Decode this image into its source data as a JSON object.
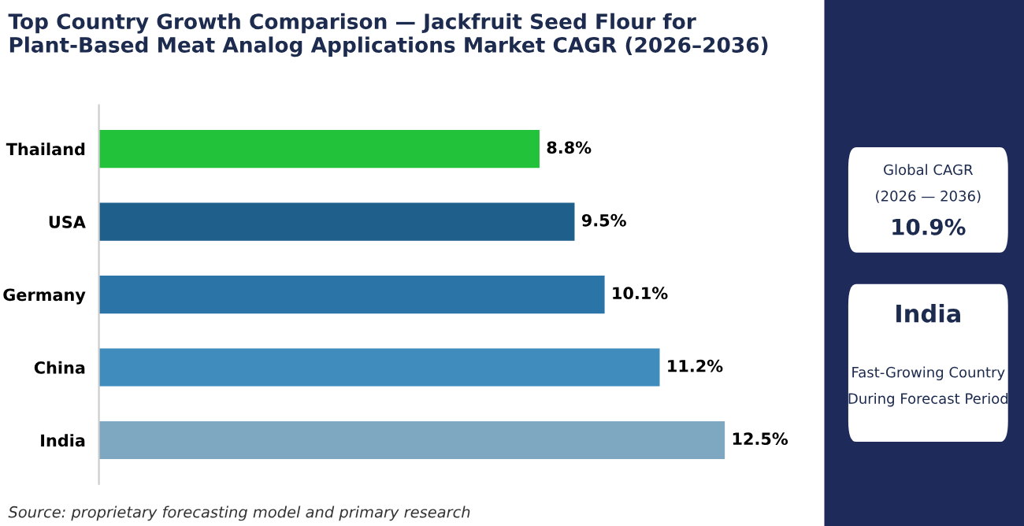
{
  "chart_data": [
    {
      "type": "bar",
      "orientation": "horizontal",
      "title": "Top Country Growth Comparison — Jackfruit Seed Flour for Plant-Based Meat Analog Applications Market CAGR (2026–2036)",
      "categories": [
        "Thailand",
        "USA",
        "Germany",
        "China",
        "India"
      ],
      "values": [
        8.8,
        9.5,
        10.1,
        11.2,
        12.5
      ],
      "colors": [
        "#22c33a",
        "#1f5f8b",
        "#2a74a8",
        "#3f8cbd",
        "#7ea7c2"
      ],
      "value_labels": [
        "8.8%",
        "9.5%",
        "10.1%",
        "11.2%",
        "12.5%"
      ],
      "grid": false,
      "legend": false,
      "annotations": [
        "Source: proprietary forecasting model and primary research"
      ]
    },
    {
      "type": "other",
      "annotations": [
        "Global CAGR",
        "(2026 — 2036)",
        "10.9%",
        "India",
        "Fast-Growing Country",
        "During Forecast Period"
      ]
    }
  ]
}
